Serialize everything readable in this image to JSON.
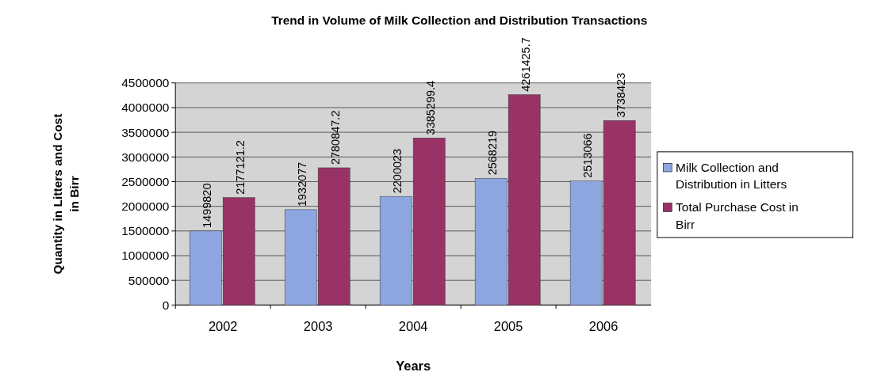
{
  "chart_data": {
    "type": "bar",
    "title": "Trend in Volume of Milk Collection and  Distribution Transactions",
    "xlabel": "Years",
    "ylabel": "Quantity in Litters and Cost in Birr",
    "categories": [
      "2002",
      "2003",
      "2004",
      "2005",
      "2006"
    ],
    "series": [
      {
        "name": "Milk Collection and Distribution in Litters",
        "color": "#8ea6e0",
        "values": [
          1499820,
          1932077,
          2200023,
          2568219,
          2513066
        ]
      },
      {
        "name": "Total Purchase Cost in Birr",
        "color": "#993366",
        "values": [
          2177121.2,
          2780847.2,
          3385299.4,
          4261425.7,
          3738423
        ]
      }
    ],
    "ylim": [
      0,
      4500000
    ],
    "yticks": [
      0,
      500000,
      1000000,
      1500000,
      2000000,
      2500000,
      3000000,
      3500000,
      4000000,
      4500000
    ],
    "grid": "y",
    "legend": "right",
    "data_labels": true
  }
}
